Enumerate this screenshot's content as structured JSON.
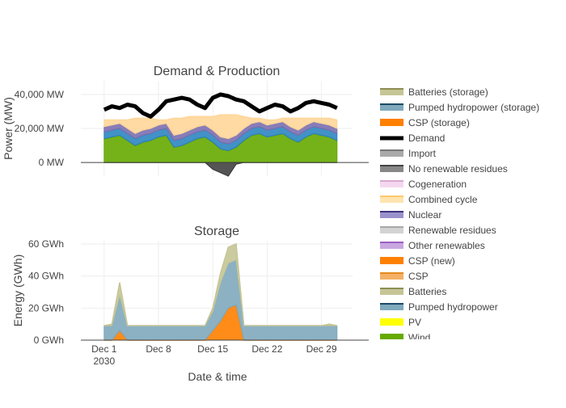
{
  "chart_data": [
    {
      "type": "area",
      "title": "Demand & Production",
      "ylabel": "Power (MW)",
      "xlabel": "",
      "x_range": [
        "2030-11-28",
        "2031-01-02"
      ],
      "ylim": [
        -8000,
        48000
      ],
      "yticks": [
        {
          "value": 0,
          "label": "0 MW"
        },
        {
          "value": 20000,
          "label": "20,000 MW"
        },
        {
          "value": 40000,
          "label": "40,000 MW"
        }
      ],
      "grid": true,
      "x": [
        "2030-12-01",
        "2030-12-02",
        "2030-12-03",
        "2030-12-04",
        "2030-12-05",
        "2030-12-06",
        "2030-12-07",
        "2030-12-08",
        "2030-12-09",
        "2030-12-10",
        "2030-12-11",
        "2030-12-12",
        "2030-12-13",
        "2030-12-14",
        "2030-12-15",
        "2030-12-16",
        "2030-12-17",
        "2030-12-18",
        "2030-12-19",
        "2030-12-20",
        "2030-12-21",
        "2030-12-22",
        "2030-12-23",
        "2030-12-24",
        "2030-12-25",
        "2030-12-26",
        "2030-12-27",
        "2030-12-28",
        "2030-12-29",
        "2030-12-30",
        "2030-12-31"
      ],
      "series": [
        {
          "name": "Import",
          "kind": "stack",
          "color": "#999999",
          "values": [
            0,
            0,
            0,
            0,
            0,
            0,
            0,
            0,
            0,
            0,
            0,
            0,
            0,
            0,
            0,
            0,
            0,
            0,
            0,
            0,
            0,
            0,
            0,
            0,
            0,
            0,
            0,
            0,
            0,
            0,
            0
          ]
        },
        {
          "name": "Wind",
          "kind": "stack",
          "color": "#66aa00",
          "values": [
            14000,
            15000,
            16000,
            13000,
            10000,
            12000,
            13000,
            15000,
            16000,
            9000,
            10000,
            12000,
            14000,
            15000,
            12000,
            8000,
            7000,
            9000,
            13000,
            16000,
            17000,
            15000,
            16000,
            17000,
            14000,
            12000,
            15000,
            17000,
            16000,
            15000,
            13000
          ]
        },
        {
          "name": "Pumped hydropower",
          "kind": "stack",
          "color": "#2e86c1",
          "values": [
            4000,
            4000,
            4000,
            4000,
            4000,
            4000,
            4000,
            4000,
            4000,
            4000,
            4000,
            4000,
            4000,
            4000,
            4000,
            4000,
            4000,
            4000,
            4000,
            4000,
            4000,
            4000,
            4000,
            4000,
            4000,
            4000,
            4000,
            4000,
            4000,
            4000,
            4000
          ]
        },
        {
          "name": "Nuclear",
          "kind": "stack",
          "color": "#7b6fb0",
          "values": [
            3000,
            3000,
            3000,
            3000,
            3000,
            3000,
            3000,
            3000,
            3000,
            3000,
            3000,
            3000,
            3000,
            3000,
            3000,
            3000,
            3000,
            3000,
            3000,
            3000,
            3000,
            3000,
            3000,
            3000,
            3000,
            3000,
            3000,
            3000,
            3000,
            3000,
            3000
          ]
        },
        {
          "name": "Combined cycle",
          "kind": "stack",
          "color": "#ffd699",
          "values": [
            4000,
            3000,
            2000,
            5000,
            9000,
            7000,
            6000,
            3000,
            2000,
            10000,
            9000,
            8000,
            6000,
            5000,
            8000,
            13000,
            14000,
            12000,
            7000,
            3000,
            2000,
            3000,
            2000,
            2000,
            5000,
            7000,
            4000,
            2000,
            3000,
            4000,
            5000
          ]
        },
        {
          "name": "No renewable residues",
          "kind": "negative",
          "color": "#555555",
          "values": [
            0,
            0,
            0,
            0,
            0,
            0,
            0,
            0,
            0,
            0,
            0,
            0,
            0,
            0,
            -4000,
            -6000,
            -8000,
            -1000,
            0,
            0,
            0,
            0,
            0,
            0,
            0,
            0,
            0,
            0,
            0,
            0,
            0
          ]
        },
        {
          "name": "Demand",
          "kind": "line",
          "color": "#000000",
          "values": [
            31000,
            33000,
            32000,
            34000,
            33000,
            29000,
            27000,
            31000,
            36000,
            37000,
            38000,
            37000,
            34000,
            32000,
            38000,
            40000,
            39000,
            37000,
            36000,
            33000,
            30000,
            32000,
            34000,
            33000,
            30000,
            32000,
            35000,
            36000,
            35000,
            34000,
            32000
          ]
        }
      ]
    },
    {
      "type": "area",
      "title": "Storage",
      "ylabel": "Energy (GWh)",
      "xlabel": "Date & time",
      "x_range": [
        "2030-11-28",
        "2031-01-02"
      ],
      "ylim": [
        0,
        62
      ],
      "yticks": [
        {
          "value": 0,
          "label": "0 GWh"
        },
        {
          "value": 20,
          "label": "20 GWh"
        },
        {
          "value": 40,
          "label": "40 GWh"
        },
        {
          "value": 60,
          "label": "60 GWh"
        }
      ],
      "xticks": [
        {
          "date": "2030-12-01",
          "label": "Dec 1",
          "sublabel": "2030"
        },
        {
          "date": "2030-12-08",
          "label": "Dec 8",
          "sublabel": ""
        },
        {
          "date": "2030-12-15",
          "label": "Dec 15",
          "sublabel": ""
        },
        {
          "date": "2030-12-22",
          "label": "Dec 22",
          "sublabel": ""
        },
        {
          "date": "2030-12-29",
          "label": "Dec 29",
          "sublabel": ""
        }
      ],
      "grid": true,
      "x": [
        "2030-12-01",
        "2030-12-02",
        "2030-12-03",
        "2030-12-04",
        "2030-12-05",
        "2030-12-06",
        "2030-12-07",
        "2030-12-08",
        "2030-12-09",
        "2030-12-10",
        "2030-12-11",
        "2030-12-12",
        "2030-12-13",
        "2030-12-14",
        "2030-12-15",
        "2030-12-16",
        "2030-12-17",
        "2030-12-18",
        "2030-12-19",
        "2030-12-20",
        "2030-12-21",
        "2030-12-22",
        "2030-12-23",
        "2030-12-24",
        "2030-12-25",
        "2030-12-26",
        "2030-12-27",
        "2030-12-28",
        "2030-12-29",
        "2030-12-30",
        "2030-12-31"
      ],
      "series": [
        {
          "name": "CSP (storage)",
          "kind": "stack",
          "color": "#ff7f00",
          "values": [
            0,
            0,
            6,
            0,
            0,
            0,
            0,
            0,
            0,
            0,
            0,
            0,
            0,
            0,
            6,
            12,
            20,
            22,
            0,
            0,
            0,
            0,
            0,
            0,
            0,
            0,
            0,
            0,
            0,
            0,
            0
          ]
        },
        {
          "name": "Pumped hydropower (storage)",
          "kind": "stack",
          "color": "#7fa9bd",
          "values": [
            9,
            9,
            22,
            9,
            9,
            9,
            9,
            9,
            9,
            9,
            9,
            9,
            9,
            9,
            12,
            24,
            28,
            28,
            9,
            9,
            9,
            9,
            9,
            9,
            9,
            9,
            9,
            9,
            9,
            9,
            9
          ]
        },
        {
          "name": "Batteries (storage)",
          "kind": "stack",
          "color": "#c5c596",
          "values": [
            0,
            1,
            8,
            0,
            0,
            0,
            0,
            0,
            0,
            0,
            0,
            0,
            0,
            0,
            2,
            6,
            10,
            10,
            0,
            0,
            0,
            0,
            0,
            0,
            0,
            0,
            0,
            0,
            0,
            1,
            0
          ]
        }
      ]
    }
  ],
  "legend": {
    "placement": "right",
    "items": [
      {
        "name": "Batteries (storage)",
        "color": "#c5c596",
        "edge": "#8e8e55"
      },
      {
        "name": "Pumped hydropower (storage)",
        "color": "#7fa9bd",
        "edge": "#1a4a64"
      },
      {
        "name": "CSP (storage)",
        "color": "#ff7f00",
        "edge": "#ff7f00"
      },
      {
        "name": "Demand",
        "color": "#000000",
        "edge": "#000000"
      },
      {
        "name": "Import",
        "color": "#aaaaaa",
        "edge": "#777777"
      },
      {
        "name": "No renewable residues",
        "color": "#888888",
        "edge": "#444444"
      },
      {
        "name": "Cogeneration",
        "color": "#f4d7ef",
        "edge": "#d8a8d0"
      },
      {
        "name": "Combined cycle",
        "color": "#ffe4b0",
        "edge": "#ffc870"
      },
      {
        "name": "Nuclear",
        "color": "#9a92cc",
        "edge": "#3d357d"
      },
      {
        "name": "Renewable residues",
        "color": "#d3d3d3",
        "edge": "#a8a8a8"
      },
      {
        "name": "Other renewables",
        "color": "#c9a7e0",
        "edge": "#9a5fc7"
      },
      {
        "name": "CSP (new)",
        "color": "#ff8000",
        "edge": "#ff8000"
      },
      {
        "name": "CSP",
        "color": "#f5b066",
        "edge": "#e58a1f"
      },
      {
        "name": "Batteries",
        "color": "#c5c596",
        "edge": "#8e8e55"
      },
      {
        "name": "Pumped hydropower",
        "color": "#7fa9bd",
        "edge": "#1a4a64"
      },
      {
        "name": "PV",
        "color": "#ffff00",
        "edge": "#ffff00"
      },
      {
        "name": "Wind",
        "color": "#66aa00",
        "edge": "#66aa00"
      }
    ]
  }
}
